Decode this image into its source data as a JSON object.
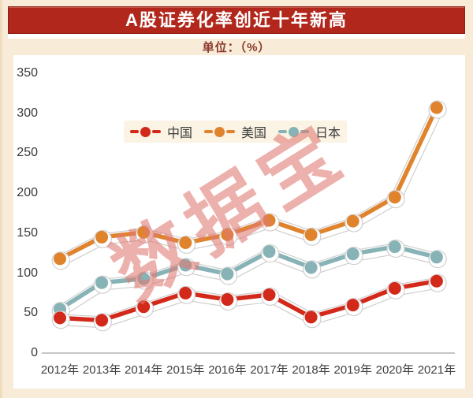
{
  "page": {
    "background": "#f8ecd8"
  },
  "header": {
    "title": "A股证券化率创近十年新高",
    "title_bg": "#b1271c",
    "title_color": "#ffffff",
    "unit_label": "单位：（%）",
    "unit_color": "#8a392b"
  },
  "watermark": {
    "text": "数据宝",
    "color": "#e07a72"
  },
  "chart_data": {
    "type": "line",
    "title": "A股证券化率创近十年新高",
    "unit": "%",
    "categories": [
      "2012年",
      "2013年",
      "2014年",
      "2015年",
      "2016年",
      "2017年",
      "2018年",
      "2019年",
      "2020年",
      "2021年"
    ],
    "series": [
      {
        "name": "中国",
        "color": "#d3291a",
        "values": [
          44,
          41,
          58,
          75,
          67,
          73,
          45,
          60,
          81,
          90
        ]
      },
      {
        "name": "美国",
        "color": "#e0832d",
        "values": [
          118,
          145,
          151,
          138,
          148,
          166,
          148,
          165,
          195,
          307
        ]
      },
      {
        "name": "日本",
        "color": "#87b3b6",
        "values": [
          55,
          88,
          93,
          110,
          99,
          127,
          107,
          124,
          133,
          120
        ]
      }
    ],
    "ylim": [
      0,
      350
    ],
    "yticks": [
      350,
      300,
      250,
      200,
      150,
      100,
      50,
      0
    ],
    "grid": false,
    "legend_position": "top-center",
    "axis_color": "#c6c6c6",
    "tick_label_color": "#3f3f3f"
  }
}
